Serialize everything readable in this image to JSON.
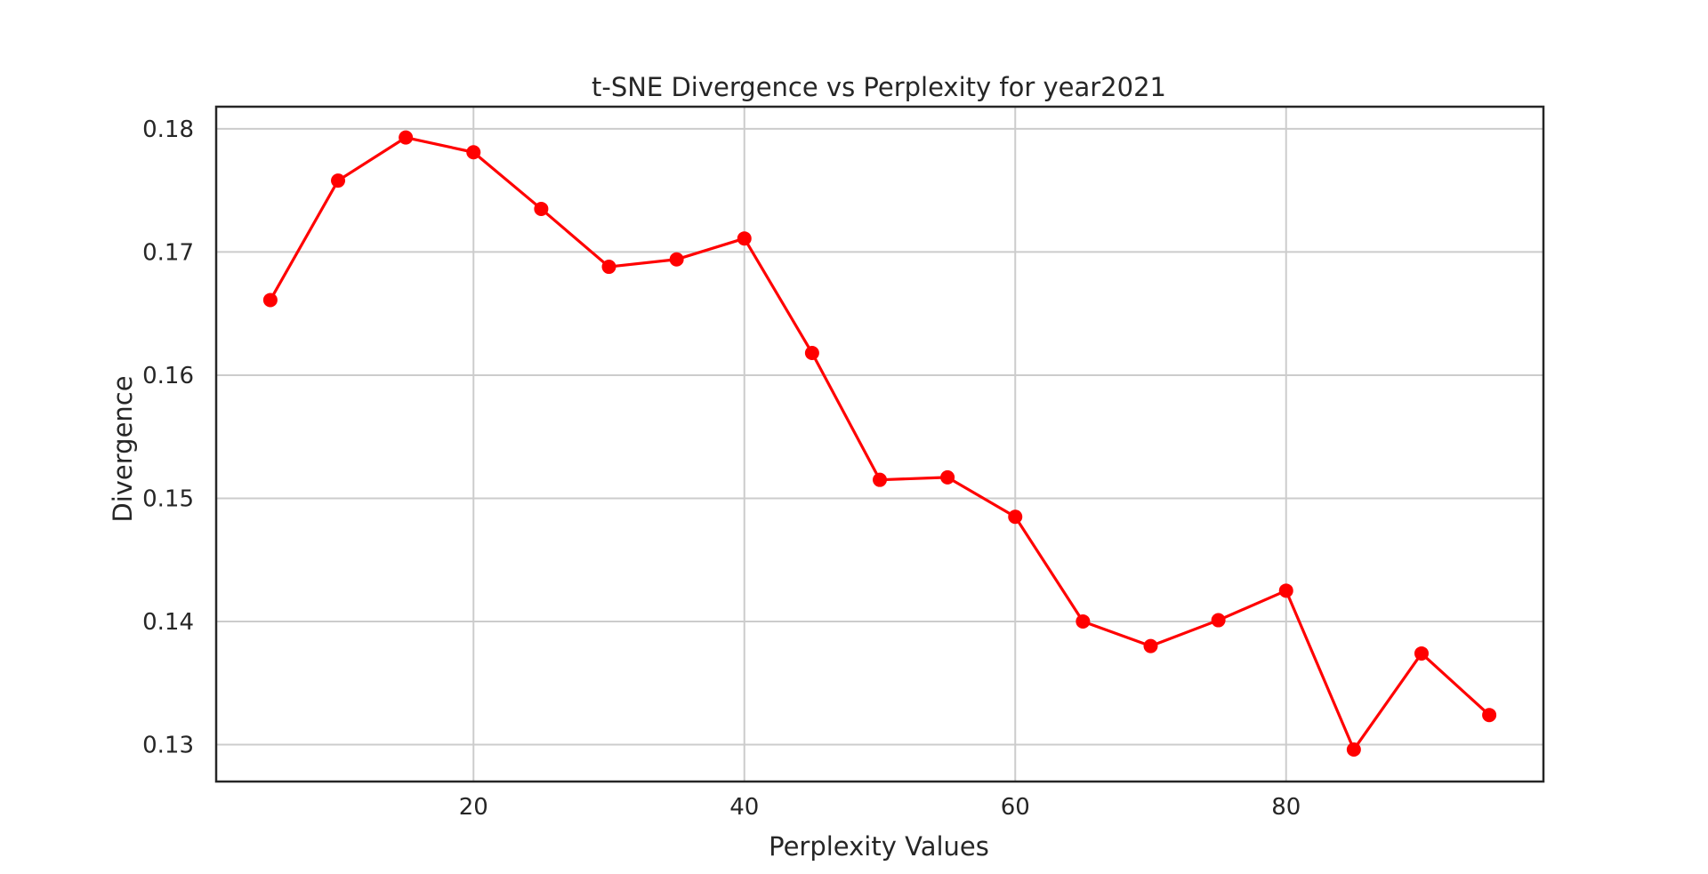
{
  "chart_data": {
    "type": "line",
    "title": "t-SNE Divergence vs Perplexity for year2021",
    "xlabel": "Perplexity Values",
    "ylabel": "Divergence",
    "xlim": [
      1,
      99
    ],
    "ylim": [
      0.127,
      0.1818
    ],
    "xticks": [
      20,
      40,
      60,
      80
    ],
    "xtick_labels": [
      "20",
      "40",
      "60",
      "80"
    ],
    "yticks": [
      0.13,
      0.14,
      0.15,
      0.16,
      0.17,
      0.18
    ],
    "ytick_labels": [
      "0.13",
      "0.14",
      "0.15",
      "0.16",
      "0.17",
      "0.18"
    ],
    "grid": true,
    "legend": false,
    "series": [
      {
        "color": "#ff0000",
        "marker": "circle",
        "x": [
          5,
          10,
          15,
          20,
          25,
          30,
          35,
          40,
          45,
          50,
          55,
          60,
          65,
          70,
          75,
          80,
          85,
          90,
          95
        ],
        "y": [
          0.1661,
          0.1758,
          0.1793,
          0.1781,
          0.1735,
          0.1688,
          0.1694,
          0.1711,
          0.1618,
          0.1515,
          0.1517,
          0.1485,
          0.14,
          0.138,
          0.1401,
          0.1425,
          0.1296,
          0.1374,
          0.1324
        ]
      }
    ]
  }
}
